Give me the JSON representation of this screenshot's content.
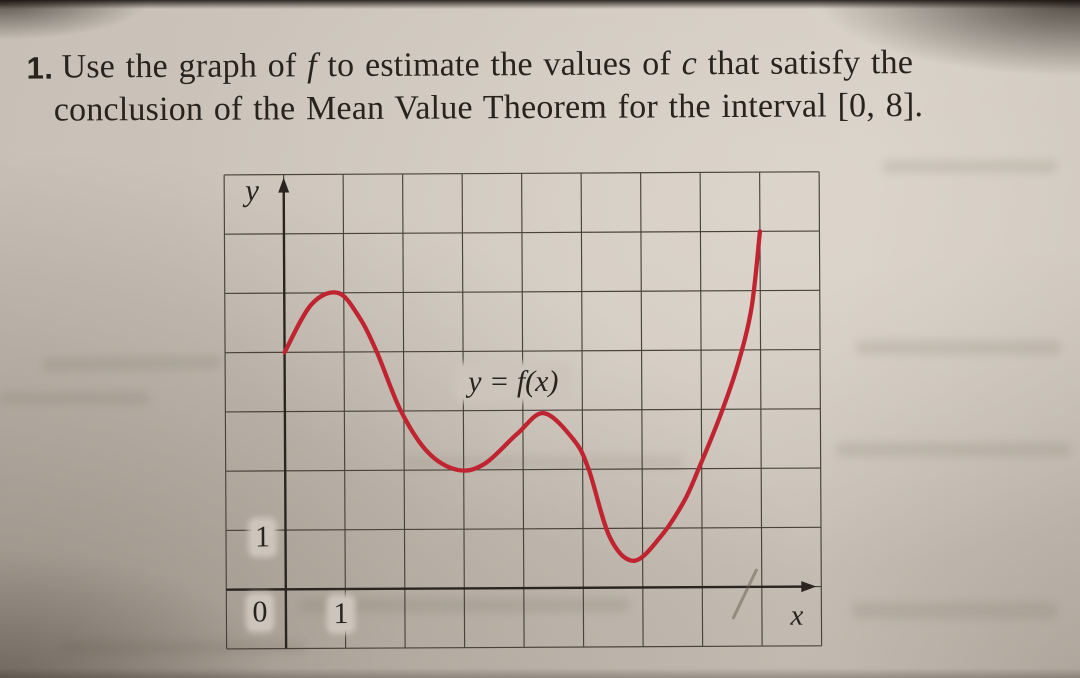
{
  "problem": {
    "number": "1.",
    "line1_segments": [
      {
        "text": "Use the graph of ",
        "italic": false
      },
      {
        "text": "f",
        "italic": true
      },
      {
        "text": " to estimate the values of ",
        "italic": false
      },
      {
        "text": "c",
        "italic": true
      },
      {
        "text": " that satisfy the",
        "italic": false
      }
    ],
    "line2": "conclusion of the Mean Value Theorem for the interval [0, 8]."
  },
  "chart_data": {
    "type": "line",
    "title": "",
    "curve_label": "y = f(x)",
    "xlabel": "x",
    "ylabel": "y",
    "tick_labels": {
      "origin": "0",
      "x_unit": "1",
      "y_unit": "1"
    },
    "x_gridline_range": [
      -1,
      9
    ],
    "y_gridline_range": [
      -1,
      7
    ],
    "grid": true,
    "interval_of_interest": "[0, 8]",
    "series": [
      {
        "name": "f",
        "color": "#bf2430",
        "points": [
          [
            0,
            4
          ],
          [
            0.45,
            4.8
          ],
          [
            0.9,
            5.0
          ],
          [
            1.25,
            4.6
          ],
          [
            1.55,
            4.0
          ],
          [
            1.95,
            3.0
          ],
          [
            2.4,
            2.3
          ],
          [
            2.9,
            2.0
          ],
          [
            3.35,
            2.1
          ],
          [
            3.9,
            2.6
          ],
          [
            4.35,
            2.95
          ],
          [
            4.85,
            2.5
          ],
          [
            5.1,
            2.0
          ],
          [
            5.45,
            0.85
          ],
          [
            5.85,
            0.45
          ],
          [
            6.3,
            0.85
          ],
          [
            6.7,
            1.45
          ],
          [
            6.95,
            2.0
          ],
          [
            7.3,
            2.85
          ],
          [
            7.6,
            3.7
          ],
          [
            7.85,
            4.7
          ],
          [
            8,
            6
          ]
        ]
      }
    ],
    "notable_values": {
      "f_at_0": 4,
      "f_at_8": 6,
      "local_maxima": [
        [
          1,
          5
        ],
        [
          4.4,
          3
        ]
      ],
      "local_minima": [
        [
          2.9,
          2
        ],
        [
          5.9,
          0.45
        ]
      ]
    }
  },
  "colors": {
    "paper": "#cfc7bd",
    "grid_line": "#4a433b",
    "axis": "#2b2521",
    "curve_red": "#bf2430",
    "text": "#29231d"
  }
}
